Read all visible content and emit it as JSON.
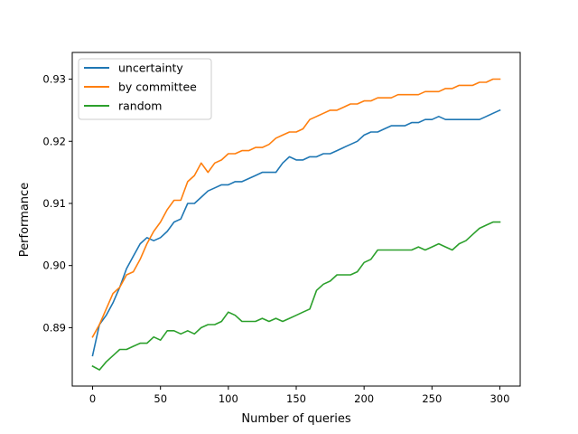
{
  "chart_data": {
    "type": "line",
    "title": "",
    "xlabel": "Number of queries",
    "ylabel": "Performance",
    "xlim": [
      -15,
      315
    ],
    "ylim": [
      0.8806,
      0.9343
    ],
    "xticks": [
      0,
      50,
      100,
      150,
      200,
      250,
      300
    ],
    "yticks": [
      0.89,
      0.9,
      0.91,
      0.92,
      0.93
    ],
    "ytick_labels": [
      "0.89",
      "0.90",
      "0.91",
      "0.92",
      "0.93"
    ],
    "grid": false,
    "legend_position": "top-left",
    "series": [
      {
        "name": "uncertainty",
        "color": "#1f77b4",
        "x": [
          0,
          5,
          10,
          15,
          20,
          25,
          30,
          35,
          40,
          45,
          50,
          55,
          60,
          65,
          70,
          75,
          80,
          85,
          90,
          95,
          100,
          105,
          110,
          115,
          120,
          125,
          130,
          135,
          140,
          145,
          150,
          155,
          160,
          165,
          170,
          175,
          180,
          185,
          190,
          195,
          200,
          205,
          210,
          215,
          220,
          225,
          230,
          235,
          240,
          245,
          250,
          255,
          260,
          265,
          270,
          275,
          280,
          285,
          290,
          295,
          300
        ],
        "values": [
          0.8855,
          0.8905,
          0.892,
          0.894,
          0.8965,
          0.8995,
          0.9015,
          0.9035,
          0.9045,
          0.904,
          0.9045,
          0.9055,
          0.907,
          0.9075,
          0.91,
          0.91,
          0.911,
          0.912,
          0.9125,
          0.913,
          0.913,
          0.9135,
          0.9135,
          0.914,
          0.9145,
          0.915,
          0.915,
          0.915,
          0.9165,
          0.9175,
          0.917,
          0.917,
          0.9175,
          0.9175,
          0.918,
          0.918,
          0.9185,
          0.919,
          0.9195,
          0.92,
          0.921,
          0.9215,
          0.9215,
          0.922,
          0.9225,
          0.9225,
          0.9225,
          0.923,
          0.923,
          0.9235,
          0.9235,
          0.924,
          0.9235,
          0.9235,
          0.9235,
          0.9235,
          0.9235,
          0.9235,
          0.924,
          0.9245,
          0.925
        ]
      },
      {
        "name": "by committee",
        "color": "#ff7f0e",
        "x": [
          0,
          5,
          10,
          15,
          20,
          25,
          30,
          35,
          40,
          45,
          50,
          55,
          60,
          65,
          70,
          75,
          80,
          85,
          90,
          95,
          100,
          105,
          110,
          115,
          120,
          125,
          130,
          135,
          140,
          145,
          150,
          155,
          160,
          165,
          170,
          175,
          180,
          185,
          190,
          195,
          200,
          205,
          210,
          215,
          220,
          225,
          230,
          235,
          240,
          245,
          250,
          255,
          260,
          265,
          270,
          275,
          280,
          285,
          290,
          295,
          300
        ],
        "values": [
          0.8885,
          0.8905,
          0.893,
          0.8955,
          0.8965,
          0.8985,
          0.899,
          0.901,
          0.9035,
          0.9055,
          0.907,
          0.909,
          0.9105,
          0.9105,
          0.9135,
          0.9145,
          0.9165,
          0.915,
          0.9165,
          0.917,
          0.918,
          0.918,
          0.9185,
          0.9185,
          0.919,
          0.919,
          0.9195,
          0.9205,
          0.921,
          0.9215,
          0.9215,
          0.922,
          0.9235,
          0.924,
          0.9245,
          0.925,
          0.925,
          0.9255,
          0.926,
          0.926,
          0.9265,
          0.9265,
          0.927,
          0.927,
          0.927,
          0.9275,
          0.9275,
          0.9275,
          0.9275,
          0.928,
          0.928,
          0.928,
          0.9285,
          0.9285,
          0.929,
          0.929,
          0.929,
          0.9295,
          0.9295,
          0.93,
          0.93
        ]
      },
      {
        "name": "random",
        "color": "#2ca02c",
        "x": [
          0,
          5,
          10,
          15,
          20,
          25,
          30,
          35,
          40,
          45,
          50,
          55,
          60,
          65,
          70,
          75,
          80,
          85,
          90,
          95,
          100,
          105,
          110,
          115,
          120,
          125,
          130,
          135,
          140,
          145,
          150,
          155,
          160,
          165,
          170,
          175,
          180,
          185,
          190,
          195,
          200,
          205,
          210,
          215,
          220,
          225,
          230,
          235,
          240,
          245,
          250,
          255,
          260,
          265,
          270,
          275,
          280,
          285,
          290,
          295,
          300
        ],
        "values": [
          0.8838,
          0.8832,
          0.8845,
          0.8855,
          0.8865,
          0.8865,
          0.887,
          0.8875,
          0.8875,
          0.8885,
          0.888,
          0.8895,
          0.8895,
          0.889,
          0.8895,
          0.889,
          0.89,
          0.8905,
          0.8905,
          0.891,
          0.8925,
          0.892,
          0.891,
          0.891,
          0.891,
          0.8915,
          0.891,
          0.8915,
          0.891,
          0.8915,
          0.892,
          0.8925,
          0.893,
          0.896,
          0.897,
          0.8975,
          0.8985,
          0.8985,
          0.8985,
          0.899,
          0.9005,
          0.901,
          0.9025,
          0.9025,
          0.9025,
          0.9025,
          0.9025,
          0.9025,
          0.903,
          0.9025,
          0.903,
          0.9035,
          0.903,
          0.9025,
          0.9035,
          0.904,
          0.905,
          0.906,
          0.9065,
          0.907,
          0.907
        ]
      }
    ]
  }
}
